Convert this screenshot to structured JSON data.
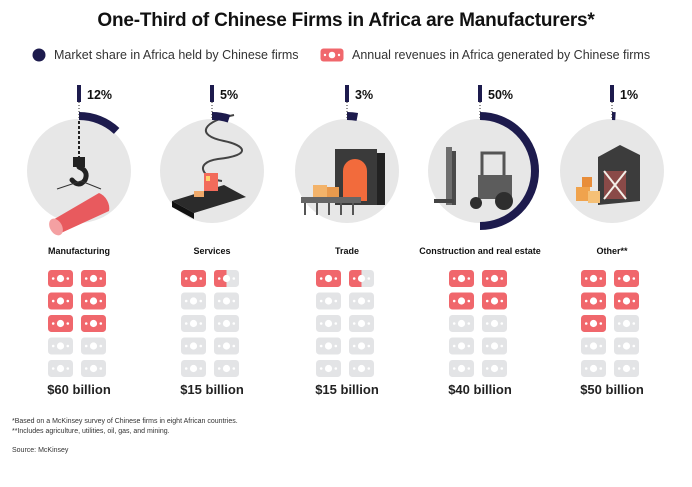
{
  "title": "One-Third of Chinese Firms in Africa are Manufacturers*",
  "legend": {
    "market_share": "Market share in Africa held by Chinese firms",
    "revenue": "Annual revenues in Africa generated by Chinese firms"
  },
  "colors": {
    "navy": "#1d1b4d",
    "circle_bg": "#e7e7e7",
    "bill_active": "#f0676c",
    "bill_inactive": "#e3e4e6",
    "text_dark": "#111111"
  },
  "chart_data": {
    "type": "bar",
    "title": "One-Third of Chinese Firms in Africa are Manufacturers*",
    "categories": [
      "Manufacturing",
      "Services",
      "Trade",
      "Construction and real estate",
      "Other**"
    ],
    "series": [
      {
        "name": "Market share in Africa held by Chinese firms",
        "values": [
          12,
          5,
          3,
          50,
          1
        ],
        "labels": [
          "12%",
          "5%",
          "3%",
          "50%",
          "1%"
        ],
        "unit": "%"
      },
      {
        "name": "Annual revenues in Africa generated by Chinese firms",
        "values": [
          60,
          15,
          15,
          40,
          50
        ],
        "labels": [
          "$60 billion",
          "$15 billion",
          "$15 billion",
          "$40 billion",
          "$50 billion"
        ],
        "unit": "$ billion"
      }
    ],
    "bill_icons_total": 10,
    "bill_icons_filled": [
      6,
      1.5,
      1.5,
      4,
      5
    ],
    "icons": [
      "crane-hook-icon",
      "conveyor-machine-icon",
      "furnace-conveyor-icon",
      "forklift-icon",
      "barn-crates-icon"
    ]
  },
  "footnotes": [
    "*Based on a McKinsey survey of Chinese firms in eight African countries.",
    "**Includes agriculture, utilities, oil, gas, and mining."
  ],
  "source": "Source: McKinsey"
}
